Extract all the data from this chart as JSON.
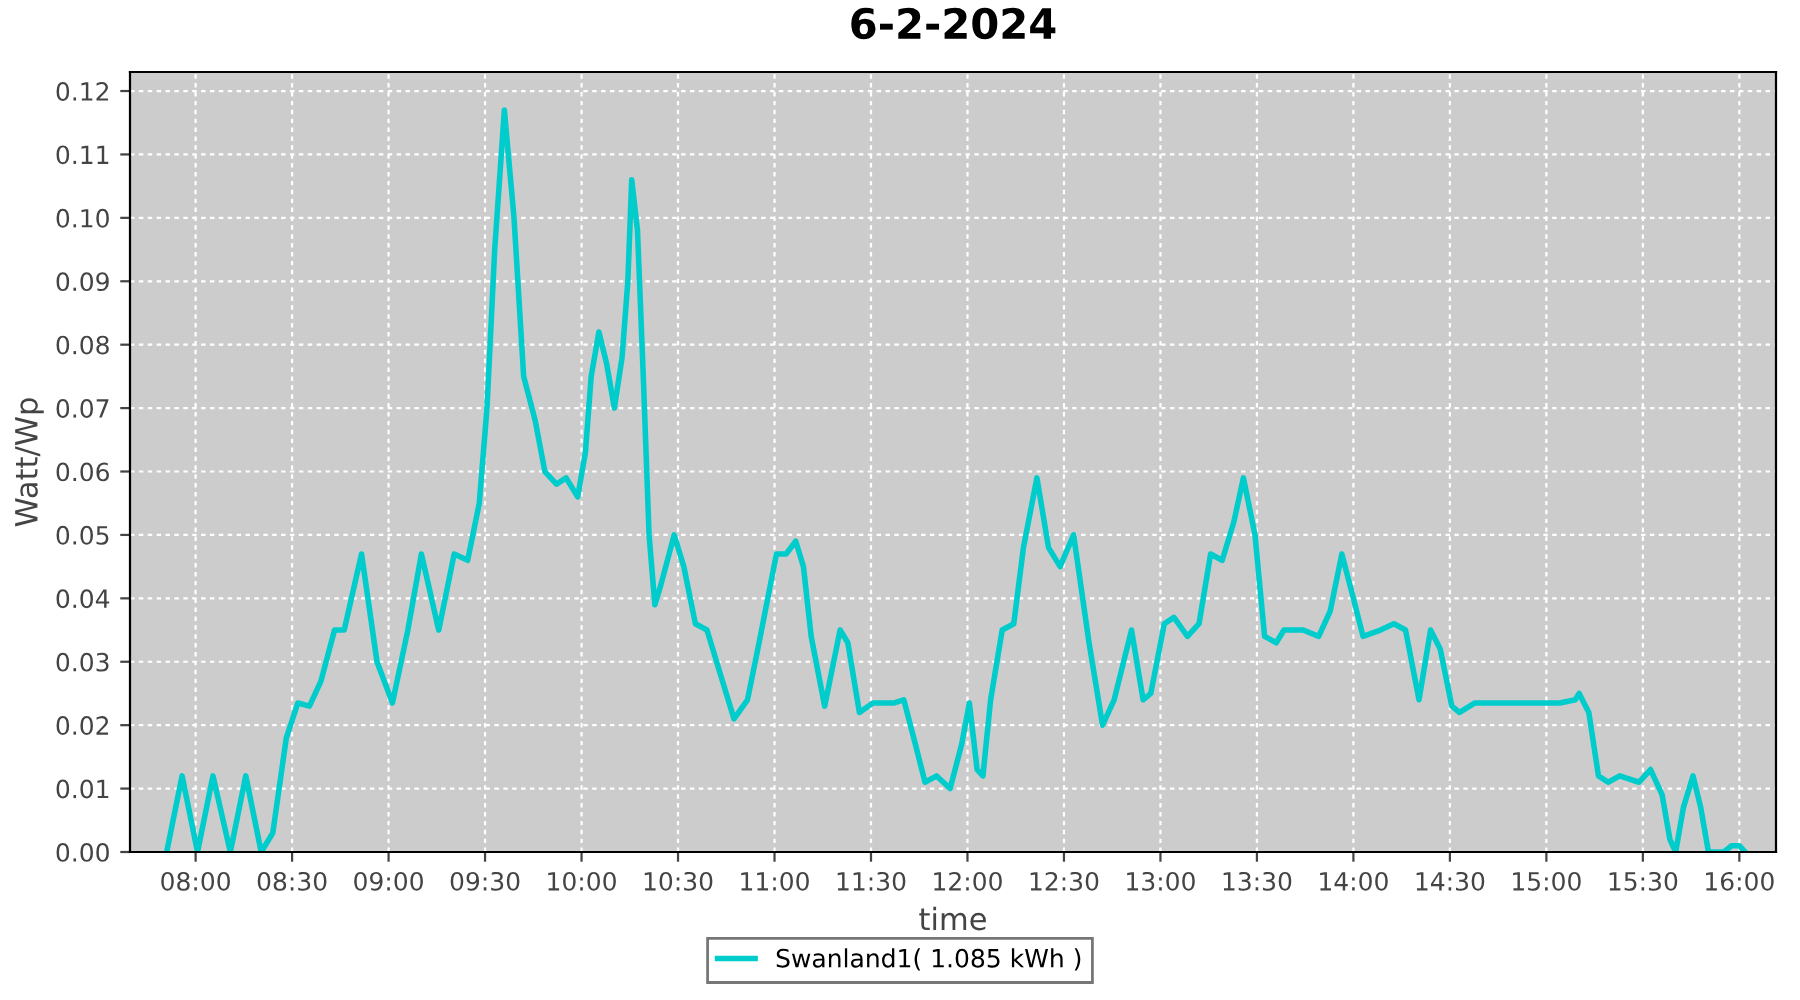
{
  "chart_data": {
    "type": "line",
    "title": "6-2-2024",
    "xlabel": "time",
    "ylabel": "Watt/Wp",
    "x": [
      7.85,
      7.93,
      8.01,
      8.09,
      8.18,
      8.26,
      8.34,
      8.4,
      8.47,
      8.53,
      8.59,
      8.65,
      8.72,
      8.77,
      8.86,
      8.94,
      9.02,
      9.1,
      9.17,
      9.26,
      9.34,
      9.41,
      9.47,
      9.51,
      9.55,
      9.6,
      9.65,
      9.7,
      9.76,
      9.81,
      9.87,
      9.92,
      9.98,
      10.02,
      10.05,
      10.09,
      10.13,
      10.17,
      10.21,
      10.24,
      10.26,
      10.29,
      10.32,
      10.35,
      10.38,
      10.41,
      10.48,
      10.53,
      10.59,
      10.65,
      10.72,
      10.79,
      10.86,
      10.92,
      11.01,
      11.06,
      11.11,
      11.15,
      11.19,
      11.26,
      11.34,
      11.38,
      11.44,
      11.51,
      11.62,
      11.67,
      11.73,
      11.78,
      11.84,
      11.91,
      11.97,
      12.01,
      12.05,
      12.08,
      12.12,
      12.18,
      12.24,
      12.29,
      12.36,
      12.42,
      12.48,
      12.55,
      12.63,
      12.7,
      12.76,
      12.85,
      12.91,
      12.95,
      13.02,
      13.07,
      13.14,
      13.2,
      13.26,
      13.32,
      13.38,
      13.43,
      13.49,
      13.54,
      13.6,
      13.64,
      13.74,
      13.82,
      13.88,
      13.94,
      14.0,
      14.05,
      14.14,
      14.21,
      14.27,
      14.34,
      14.4,
      14.45,
      14.51,
      14.55,
      14.63,
      14.76,
      14.96,
      15.07,
      15.15,
      15.17,
      15.22,
      15.27,
      15.32,
      15.38,
      15.48,
      15.54,
      15.6,
      15.64,
      15.67,
      15.71,
      15.76,
      15.8,
      15.84,
      15.92,
      15.96,
      16.0,
      16.03
    ],
    "series": [
      {
        "name": "Swanland1( 1.085 kWh )",
        "color": "#00cccc",
        "values": [
          0,
          0.012,
          0,
          0.012,
          0,
          0.012,
          0,
          0.003,
          0.018,
          0.0235,
          0.023,
          0.027,
          0.035,
          0.035,
          0.047,
          0.03,
          0.0235,
          0.035,
          0.047,
          0.035,
          0.047,
          0.046,
          0.055,
          0.07,
          0.095,
          0.117,
          0.1,
          0.075,
          0.068,
          0.06,
          0.058,
          0.059,
          0.056,
          0.063,
          0.075,
          0.082,
          0.077,
          0.07,
          0.078,
          0.09,
          0.106,
          0.098,
          0.075,
          0.05,
          0.039,
          0.042,
          0.05,
          0.045,
          0.036,
          0.035,
          0.028,
          0.021,
          0.024,
          0.033,
          0.047,
          0.047,
          0.049,
          0.045,
          0.034,
          0.023,
          0.035,
          0.033,
          0.022,
          0.0235,
          0.0235,
          0.024,
          0.017,
          0.011,
          0.012,
          0.01,
          0.017,
          0.0235,
          0.013,
          0.012,
          0.024,
          0.035,
          0.036,
          0.048,
          0.059,
          0.048,
          0.045,
          0.05,
          0.033,
          0.02,
          0.024,
          0.035,
          0.024,
          0.025,
          0.036,
          0.037,
          0.034,
          0.036,
          0.047,
          0.046,
          0.052,
          0.059,
          0.05,
          0.034,
          0.033,
          0.035,
          0.035,
          0.034,
          0.038,
          0.047,
          0.04,
          0.034,
          0.035,
          0.036,
          0.035,
          0.024,
          0.035,
          0.032,
          0.023,
          0.022,
          0.0235,
          0.0235,
          0.0235,
          0.0235,
          0.024,
          0.025,
          0.022,
          0.012,
          0.011,
          0.012,
          0.011,
          0.013,
          0.009,
          0.002,
          0,
          0.007,
          0.012,
          0.007,
          0,
          0,
          0.001,
          0.001,
          0
        ]
      }
    ],
    "xlim": [
      7.66,
      16.19
    ],
    "xticks": [
      {
        "value": 8,
        "label": "08:00"
      },
      {
        "value": 8.5,
        "label": "08:30"
      },
      {
        "value": 9,
        "label": "09:00"
      },
      {
        "value": 9.5,
        "label": "09:30"
      },
      {
        "value": 10,
        "label": "10:00"
      },
      {
        "value": 10.5,
        "label": "10:30"
      },
      {
        "value": 11,
        "label": "11:00"
      },
      {
        "value": 11.5,
        "label": "11:30"
      },
      {
        "value": 12,
        "label": "12:00"
      },
      {
        "value": 12.5,
        "label": "12:30"
      },
      {
        "value": 13,
        "label": "13:00"
      },
      {
        "value": 13.5,
        "label": "13:30"
      },
      {
        "value": 14,
        "label": "14:00"
      },
      {
        "value": 14.5,
        "label": "14:30"
      },
      {
        "value": 15,
        "label": "15:00"
      },
      {
        "value": 15.5,
        "label": "15:30"
      },
      {
        "value": 16,
        "label": "16:00"
      }
    ],
    "ylim": [
      0,
      0.123
    ],
    "yticks": [
      {
        "value": 0,
        "label": "0.00"
      },
      {
        "value": 0.01,
        "label": "0.01"
      },
      {
        "value": 0.02,
        "label": "0.02"
      },
      {
        "value": 0.03,
        "label": "0.03"
      },
      {
        "value": 0.04,
        "label": "0.04"
      },
      {
        "value": 0.05,
        "label": "0.05"
      },
      {
        "value": 0.06,
        "label": "0.06"
      },
      {
        "value": 0.07,
        "label": "0.07"
      },
      {
        "value": 0.08,
        "label": "0.08"
      },
      {
        "value": 0.09,
        "label": "0.09"
      },
      {
        "value": 0.1,
        "label": "0.10"
      },
      {
        "value": 0.11,
        "label": "0.11"
      },
      {
        "value": 0.12,
        "label": "0.12"
      }
    ],
    "grid": true,
    "legend": "bottom",
    "marker": "none",
    "line_style": "solid"
  }
}
